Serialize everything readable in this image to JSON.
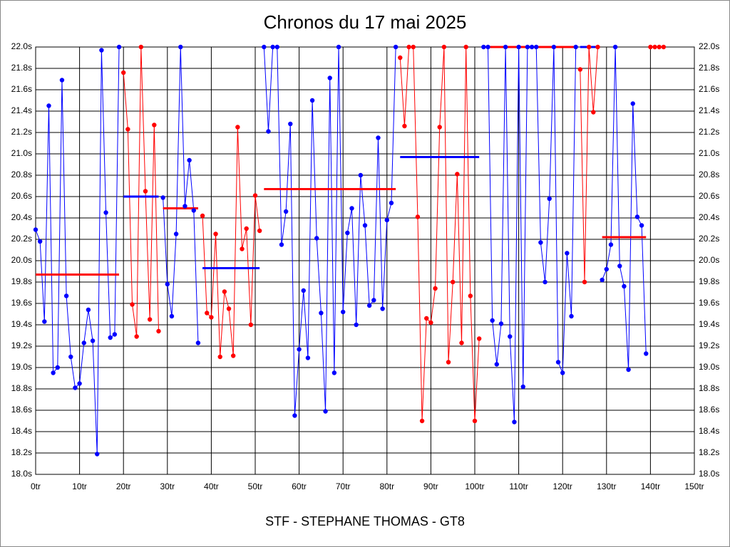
{
  "chart_data": {
    "type": "line",
    "title": "Chronos du 17 mai 2025",
    "xlabel": "STF - STEPHANE THOMAS - GT8",
    "xlim": [
      0,
      150
    ],
    "ylim": [
      18,
      22
    ],
    "grid": true,
    "xticks": [
      {
        "value": 0,
        "label": "0tr"
      },
      {
        "value": 10,
        "label": "10tr"
      },
      {
        "value": 20,
        "label": "20tr"
      },
      {
        "value": 30,
        "label": "30tr"
      },
      {
        "value": 40,
        "label": "40tr"
      },
      {
        "value": 50,
        "label": "50tr"
      },
      {
        "value": 60,
        "label": "60tr"
      },
      {
        "value": 70,
        "label": "70tr"
      },
      {
        "value": 80,
        "label": "80tr"
      },
      {
        "value": 90,
        "label": "90tr"
      },
      {
        "value": 100,
        "label": "100tr"
      },
      {
        "value": 110,
        "label": "110tr"
      },
      {
        "value": 120,
        "label": "120tr"
      },
      {
        "value": 130,
        "label": "130tr"
      },
      {
        "value": 140,
        "label": "140tr"
      },
      {
        "value": 150,
        "label": "150tr"
      }
    ],
    "yticks": [
      {
        "value": 18.0,
        "label": "18.0s"
      },
      {
        "value": 18.2,
        "label": "18.2s"
      },
      {
        "value": 18.4,
        "label": "18.4s"
      },
      {
        "value": 18.6,
        "label": "18.6s"
      },
      {
        "value": 18.8,
        "label": "18.8s"
      },
      {
        "value": 19.0,
        "label": "19.0s"
      },
      {
        "value": 19.2,
        "label": "19.2s"
      },
      {
        "value": 19.4,
        "label": "19.4s"
      },
      {
        "value": 19.6,
        "label": "19.6s"
      },
      {
        "value": 19.8,
        "label": "19.8s"
      },
      {
        "value": 20.0,
        "label": "20.0s"
      },
      {
        "value": 20.2,
        "label": "20.2s"
      },
      {
        "value": 20.4,
        "label": "20.4s"
      },
      {
        "value": 20.6,
        "label": "20.6s"
      },
      {
        "value": 20.8,
        "label": "20.8s"
      },
      {
        "value": 21.0,
        "label": "21.0s"
      },
      {
        "value": 21.2,
        "label": "21.2s"
      },
      {
        "value": 21.4,
        "label": "21.4s"
      },
      {
        "value": 21.6,
        "label": "21.6s"
      },
      {
        "value": 21.8,
        "label": "21.8s"
      },
      {
        "value": 22.0,
        "label": "22.0s"
      }
    ],
    "series": [
      {
        "color": "#0000ff",
        "average": 19.87,
        "average_color": "#ff0000",
        "x": [
          0,
          1,
          2,
          3,
          4,
          5,
          6,
          7,
          8,
          9,
          10,
          11,
          12,
          13,
          14,
          15,
          16,
          17,
          18,
          19
        ],
        "values": [
          20.29,
          20.18,
          19.43,
          21.45,
          18.95,
          19.0,
          21.69,
          19.67,
          19.1,
          18.81,
          18.85,
          19.23,
          19.54,
          19.25,
          18.19,
          21.97,
          20.45,
          19.28,
          19.31,
          22.0
        ]
      },
      {
        "color": "#ff0000",
        "average": 20.6,
        "average_color": "#0000ff",
        "x": [
          20,
          21,
          22,
          23,
          24,
          25,
          26,
          27,
          28
        ],
        "values": [
          21.76,
          21.23,
          19.59,
          19.29,
          22.0,
          20.65,
          19.45,
          21.27,
          19.34
        ]
      },
      {
        "color": "#0000ff",
        "average": 20.49,
        "average_color": "#ff0000",
        "x": [
          29,
          30,
          31,
          32,
          33,
          34,
          35,
          36,
          37
        ],
        "values": [
          20.59,
          19.78,
          19.48,
          20.25,
          22.0,
          20.51,
          20.94,
          20.47,
          19.23
        ]
      },
      {
        "color": "#ff0000",
        "average": 19.93,
        "average_color": "#0000ff",
        "x": [
          38,
          39,
          40,
          41,
          42,
          43,
          44,
          45,
          46,
          47,
          48,
          49,
          50,
          51
        ],
        "values": [
          20.42,
          19.51,
          19.47,
          20.25,
          19.1,
          19.71,
          19.55,
          19.11,
          21.25,
          20.11,
          20.3,
          19.4,
          20.61,
          20.28
        ]
      },
      {
        "color": "#0000ff",
        "average": 20.67,
        "average_color": "#ff0000",
        "x": [
          52,
          53,
          54,
          55,
          56,
          57,
          58,
          59,
          60,
          61,
          62,
          63,
          64,
          65,
          66,
          67,
          68,
          69,
          70,
          71,
          72,
          73,
          74,
          75,
          76,
          77,
          78,
          79,
          80,
          81,
          82
        ],
        "values": [
          22.0,
          21.21,
          22.0,
          22.0,
          20.15,
          20.46,
          21.28,
          18.55,
          19.17,
          19.72,
          19.09,
          21.5,
          20.21,
          19.51,
          18.59,
          21.71,
          18.95,
          22.0,
          19.52,
          20.26,
          20.49,
          19.4,
          20.8,
          20.33,
          19.58,
          19.63,
          21.15,
          19.55,
          20.38,
          20.54,
          22.0
        ]
      },
      {
        "color": "#ff0000",
        "average": 20.97,
        "average_color": "#0000ff",
        "x": [
          83,
          84,
          85,
          86,
          87,
          88,
          89,
          90,
          91,
          92,
          93,
          94,
          95,
          96,
          97,
          98,
          99,
          100,
          101
        ],
        "values": [
          21.9,
          21.26,
          22.0,
          22.0,
          20.41,
          18.5,
          19.46,
          19.42,
          19.74,
          21.25,
          22.0,
          19.05,
          19.8,
          20.81,
          19.23,
          22.0,
          19.67,
          18.5,
          19.27
        ]
      },
      {
        "color": "#0000ff",
        "average": 22.0,
        "average_color": "#ff0000",
        "x": [
          102,
          103,
          104,
          105,
          106,
          107,
          108,
          109,
          110,
          111,
          112,
          113,
          114,
          115,
          116,
          117,
          118,
          119,
          120,
          121,
          122,
          123
        ],
        "values": [
          22.0,
          22.0,
          19.44,
          19.03,
          19.41,
          22.0,
          19.29,
          18.49,
          22.0,
          18.82,
          22.0,
          22.0,
          22.0,
          20.17,
          19.8,
          20.58,
          22.0,
          19.05,
          18.95,
          20.07,
          19.48,
          22.0
        ]
      },
      {
        "color": "#ff0000",
        "average": 22.0,
        "average_color": "#0000ff",
        "x": [
          124,
          125,
          126,
          127,
          128
        ],
        "values": [
          21.79,
          19.8,
          22.0,
          21.39,
          22.0
        ]
      },
      {
        "color": "#0000ff",
        "average": 20.22,
        "average_color": "#ff0000",
        "x": [
          129,
          130,
          131,
          132,
          133,
          134,
          135,
          136,
          137,
          138,
          139
        ],
        "values": [
          19.82,
          19.92,
          20.15,
          22.0,
          19.95,
          19.76,
          18.98,
          21.47,
          20.41,
          20.33,
          19.13
        ]
      },
      {
        "color": "#ff0000",
        "x": [
          140,
          141,
          142,
          143
        ],
        "values": [
          22.0,
          22.0,
          22.0,
          22.0
        ]
      }
    ]
  }
}
